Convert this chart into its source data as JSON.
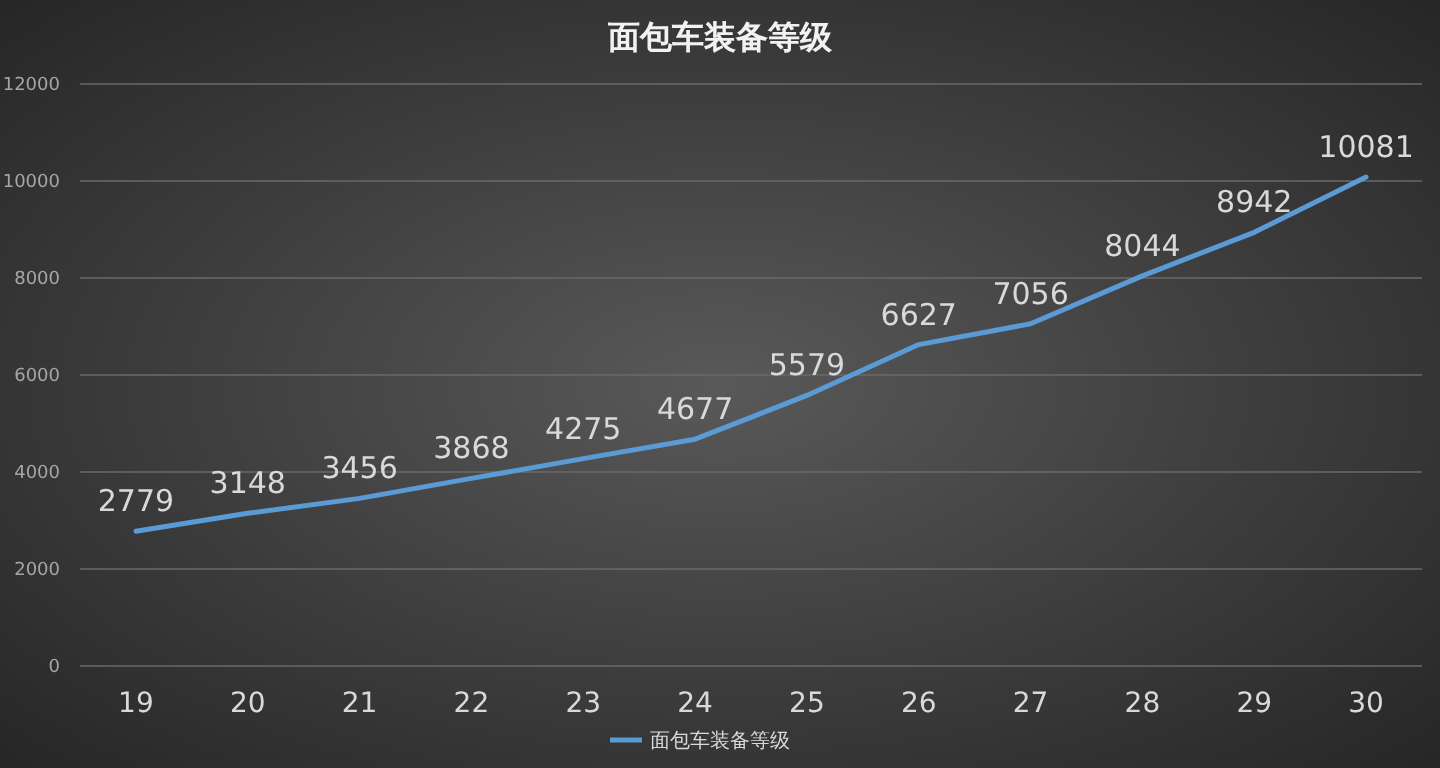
{
  "chart_data": {
    "type": "line",
    "title": "面包车装备等级",
    "categories": [
      "19",
      "20",
      "21",
      "22",
      "23",
      "24",
      "25",
      "26",
      "27",
      "28",
      "29",
      "30"
    ],
    "series": [
      {
        "name": "面包车装备等级",
        "color": "#5b9bd5",
        "values": [
          2779,
          3148,
          3456,
          3868,
          4275,
          4677,
          5579,
          6627,
          7056,
          8044,
          8942,
          10081
        ]
      }
    ],
    "ylim": [
      0,
      12000
    ],
    "yticks": [
      0,
      2000,
      4000,
      6000,
      8000,
      10000,
      12000
    ],
    "grid": "y",
    "legend": "bottom",
    "data_labels": true
  }
}
